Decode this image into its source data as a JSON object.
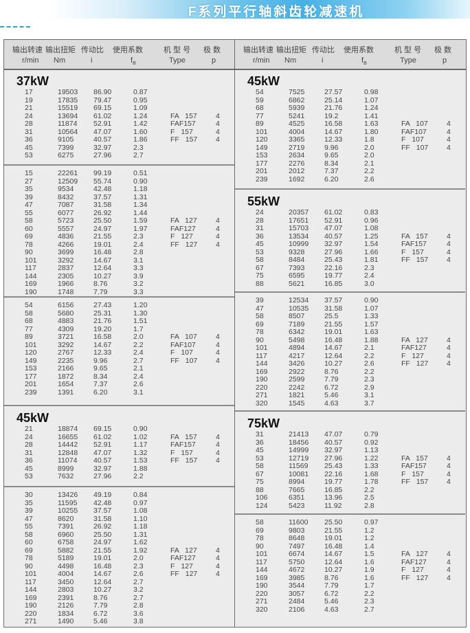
{
  "title": "F系列平行轴斜齿轮减速机",
  "header": {
    "columns": [
      {
        "cn": "输出转速",
        "unit": "r/min"
      },
      {
        "cn": "输出扭矩",
        "unit": "Nm"
      },
      {
        "cn": "传动比",
        "unit": "i"
      },
      {
        "cn": "使用系数",
        "unit": "f",
        "unit_sub": "B"
      },
      {
        "cn": "机 型 号",
        "unit": "Type"
      },
      {
        "cn": "极  数",
        "unit": "p"
      }
    ]
  },
  "colors": {
    "banner": "#45b1e6",
    "table_bg": "#ececec",
    "border": "#6a6a6a"
  },
  "panels": [
    {
      "groups": [
        {
          "power": "37kW",
          "pole": "4",
          "types": [
            "FA 157",
            "FAF157",
            "F 157",
            "FF 157"
          ],
          "type_start": 3,
          "rows": [
            [
              "17",
              "19503",
              "86.90",
              "0.87"
            ],
            [
              "19",
              "17835",
              "79.47",
              "0.95"
            ],
            [
              "21",
              "15519",
              "69.15",
              "1.09"
            ],
            [
              "24",
              "13694",
              "61.02",
              "1.24"
            ],
            [
              "28",
              "11874",
              "52.91",
              "1.42"
            ],
            [
              "31",
              "10564",
              "47.07",
              "1.60"
            ],
            [
              "36",
              "9105",
              "40.57",
              "1.86"
            ],
            [
              "45",
              "7399",
              "32.97",
              "2.3"
            ],
            [
              "53",
              "6275",
              "27.96",
              "2.7"
            ]
          ]
        },
        {
          "power": "",
          "pole": "4",
          "types": [
            "FA 127",
            "FAF127",
            "F 127",
            "FF 127"
          ],
          "type_start": 6,
          "rows": [
            [
              "15",
              "22261",
              "99.19",
              "0.51"
            ],
            [
              "27",
              "12509",
              "55.74",
              "0.90"
            ],
            [
              "35",
              "9534",
              "42.48",
              "1.18"
            ],
            [
              "39",
              "8432",
              "37.57",
              "1.31"
            ],
            [
              "47",
              "7087",
              "31.58",
              "1.34"
            ],
            [
              "55",
              "6077",
              "26.92",
              "1.44"
            ],
            [
              "58",
              "5723",
              "25.50",
              "1.59"
            ],
            [
              "60",
              "5557",
              "24.97",
              "1.97"
            ],
            [
              "69",
              "4836",
              "21.55",
              "2.3"
            ],
            [
              "78",
              "4266",
              "19.01",
              "2.4"
            ],
            [
              "90",
              "3699",
              "16.48",
              "2.8"
            ],
            [
              "101",
              "3292",
              "14.67",
              "3.1"
            ],
            [
              "117",
              "2837",
              "12.64",
              "3.3"
            ],
            [
              "144",
              "2305",
              "10.27",
              "3.9"
            ],
            [
              "169",
              "1966",
              "8.76",
              "3.2"
            ],
            [
              "190",
              "1748",
              "7.79",
              "3.3"
            ]
          ]
        },
        {
          "power": "",
          "pole": "4",
          "types": [
            "FA 107",
            "FAF107",
            "F 107",
            "FF 107"
          ],
          "type_start": 4,
          "rows": [
            [
              "54",
              "6156",
              "27.43",
              "1.20"
            ],
            [
              "58",
              "5680",
              "25.31",
              "1.30"
            ],
            [
              "68",
              "4883",
              "21.76",
              "1.51"
            ],
            [
              "77",
              "4309",
              "19.20",
              "1.7"
            ],
            [
              "89",
              "3721",
              "16.58",
              "2.0"
            ],
            [
              "101",
              "3292",
              "14.67",
              "2.2"
            ],
            [
              "120",
              "2767",
              "12.33",
              "2.4"
            ],
            [
              "149",
              "2235",
              "9.96",
              "2.7"
            ],
            [
              "153",
              "2166",
              "9.65",
              "2.1"
            ],
            [
              "177",
              "1872",
              "8.34",
              "2.4"
            ],
            [
              "201",
              "1654",
              "7.37",
              "2.6"
            ],
            [
              "239",
              "1391",
              "6.20",
              "3.1"
            ]
          ]
        },
        {
          "power": "45kW",
          "pole": "4",
          "types": [
            "FA 157",
            "FAF157",
            "F 157",
            "FF 157"
          ],
          "type_start": 1,
          "rows": [
            [
              "21",
              "18874",
              "69.15",
              "0.90"
            ],
            [
              "24",
              "16655",
              "61.02",
              "1.02"
            ],
            [
              "28",
              "14442",
              "52.91",
              "1.17"
            ],
            [
              "31",
              "12848",
              "47.07",
              "1.32"
            ],
            [
              "36",
              "11074",
              "40.57",
              "1.53"
            ],
            [
              "45",
              "8999",
              "32.97",
              "1.88"
            ],
            [
              "53",
              "7632",
              "27.96",
              "2.2"
            ]
          ]
        },
        {
          "power": "",
          "pole": "4",
          "types": [
            "FA 127",
            "FAF127",
            "F 127",
            "FF 127"
          ],
          "type_start": 7,
          "rows": [
            [
              "30",
              "13426",
              "49.19",
              "0.84"
            ],
            [
              "35",
              "11595",
              "42.48",
              "0.97"
            ],
            [
              "39",
              "10255",
              "37.57",
              "1.08"
            ],
            [
              "47",
              "8620",
              "31.58",
              "1.10"
            ],
            [
              "55",
              "7391",
              "26.92",
              "1.18"
            ],
            [
              "58",
              "6960",
              "25.50",
              "1.31"
            ],
            [
              "60",
              "6758",
              "24.97",
              "1.62"
            ],
            [
              "69",
              "5882",
              "21.55",
              "1.92"
            ],
            [
              "78",
              "5189",
              "19.01",
              "2.0"
            ],
            [
              "90",
              "4498",
              "16.48",
              "2.3"
            ],
            [
              "101",
              "4004",
              "14.67",
              "2.6"
            ],
            [
              "117",
              "3450",
              "12.64",
              "2.7"
            ],
            [
              "144",
              "2803",
              "10.27",
              "3.2"
            ],
            [
              "169",
              "2391",
              "8.76",
              "2.7"
            ],
            [
              "190",
              "2126",
              "7.79",
              "2.8"
            ],
            [
              "220",
              "1834",
              "6.72",
              "3.6"
            ],
            [
              "271",
              "1490",
              "5.46",
              "3.8"
            ]
          ]
        }
      ]
    },
    {
      "groups": [
        {
          "power": "45kW",
          "pole": "4",
          "types": [
            "FA 107",
            "FAF107",
            "F 107",
            "FF 107"
          ],
          "type_start": 4,
          "rows": [
            [
              "54",
              "7525",
              "27.57",
              "0.98"
            ],
            [
              "59",
              "6862",
              "25.14",
              "1.07"
            ],
            [
              "68",
              "5939",
              "21.76",
              "1.24"
            ],
            [
              "77",
              "5241",
              "19.2",
              "1.41"
            ],
            [
              "89",
              "4525",
              "16.58",
              "1.63"
            ],
            [
              "101",
              "4004",
              "14.67",
              "1.80"
            ],
            [
              "120",
              "3365",
              "12.33",
              "1.8"
            ],
            [
              "149",
              "2719",
              "9.96",
              "2.0"
            ],
            [
              "153",
              "2634",
              "9.65",
              "2.0"
            ],
            [
              "177",
              "2276",
              "8.34",
              "2.1"
            ],
            [
              "201",
              "2012",
              "7.37",
              "2.2"
            ],
            [
              "239",
              "1692",
              "6.20",
              "2.6"
            ]
          ]
        },
        {
          "power": "55kW",
          "pole": "4",
          "types": [
            "FA 157",
            "FAF157",
            "F 157",
            "FF 157"
          ],
          "type_start": 3,
          "rows": [
            [
              "24",
              "20357",
              "61.02",
              "0.83"
            ],
            [
              "28",
              "17651",
              "52.91",
              "0.96"
            ],
            [
              "31",
              "15703",
              "47.07",
              "1.08"
            ],
            [
              "36",
              "13534",
              "40.57",
              "1.25"
            ],
            [
              "45",
              "10999",
              "32.97",
              "1.54"
            ],
            [
              "53",
              "9328",
              "27.96",
              "1.66"
            ],
            [
              "58",
              "8484",
              "25.43",
              "1.81"
            ],
            [
              "67",
              "7393",
              "22.16",
              "2.3"
            ],
            [
              "75",
              "6595",
              "19.77",
              "2.4"
            ],
            [
              "88",
              "5621",
              "16.85",
              "3.0"
            ]
          ]
        },
        {
          "power": "",
          "pole": "4",
          "types": [
            "FA 127",
            "FAF127",
            "F 127",
            "FF 127"
          ],
          "type_start": 5,
          "rows": [
            [
              "39",
              "12534",
              "37.57",
              "0.90"
            ],
            [
              "47",
              "10535",
              "31.58",
              "1.07"
            ],
            [
              "58",
              "8507",
              "25.5",
              "1.33"
            ],
            [
              "69",
              "7189",
              "21.55",
              "1.57"
            ],
            [
              "78",
              "6342",
              "19.01",
              "1.63"
            ],
            [
              "90",
              "5498",
              "16.48",
              "1.88"
            ],
            [
              "101",
              "4894",
              "14.67",
              "2.1"
            ],
            [
              "117",
              "4217",
              "12.64",
              "2.2"
            ],
            [
              "144",
              "3426",
              "10.27",
              "2.6"
            ],
            [
              "169",
              "2922",
              "8.76",
              "2.2"
            ],
            [
              "190",
              "2599",
              "7.79",
              "2.3"
            ],
            [
              "220",
              "2242",
              "6.72",
              "2.9"
            ],
            [
              "271",
              "1821",
              "5.46",
              "3.1"
            ],
            [
              "320",
              "1545",
              "4.63",
              "3.7"
            ]
          ]
        },
        {
          "power": "75kW",
          "pole": "4",
          "types": [
            "FA 157",
            "FAF157",
            "F 157",
            "FF 157"
          ],
          "type_start": 3,
          "rows": [
            [
              "31",
              "21413",
              "47.07",
              "0.79"
            ],
            [
              "36",
              "18456",
              "40.57",
              "0.92"
            ],
            [
              "45",
              "14999",
              "32.97",
              "1.13"
            ],
            [
              "53",
              "12719",
              "27.96",
              "1.22"
            ],
            [
              "58",
              "11569",
              "25.43",
              "1.33"
            ],
            [
              "67",
              "10081",
              "22.16",
              "1.68"
            ],
            [
              "75",
              "8994",
              "19.77",
              "1.78"
            ],
            [
              "88",
              "7665",
              "16.85",
              "2.2"
            ],
            [
              "106",
              "6351",
              "13.96",
              "2.5"
            ],
            [
              "124",
              "5423",
              "11.92",
              "2.8"
            ]
          ]
        },
        {
          "power": "",
          "pole": "4",
          "types": [
            "FA 127",
            "FAF127",
            "F 127",
            "FF 127"
          ],
          "type_start": 4,
          "rows": [
            [
              "58",
              "11600",
              "25.50",
              "0.97"
            ],
            [
              "69",
              "9803",
              "21.55",
              "1.2"
            ],
            [
              "78",
              "8648",
              "19.01",
              "1.2"
            ],
            [
              "90",
              "7497",
              "16.48",
              "1.4"
            ],
            [
              "101",
              "6674",
              "14.67",
              "1.5"
            ],
            [
              "117",
              "5750",
              "12.64",
              "1.6"
            ],
            [
              "144",
              "4672",
              "10.27",
              "1.9"
            ],
            [
              "169",
              "3985",
              "8.76",
              "1.6"
            ],
            [
              "190",
              "3544",
              "7.79",
              "1.7"
            ],
            [
              "220",
              "3057",
              "6.72",
              "2.2"
            ],
            [
              "271",
              "2484",
              "5.46",
              "2.3"
            ],
            [
              "320",
              "2106",
              "4.63",
              "2.7"
            ]
          ]
        }
      ]
    }
  ]
}
